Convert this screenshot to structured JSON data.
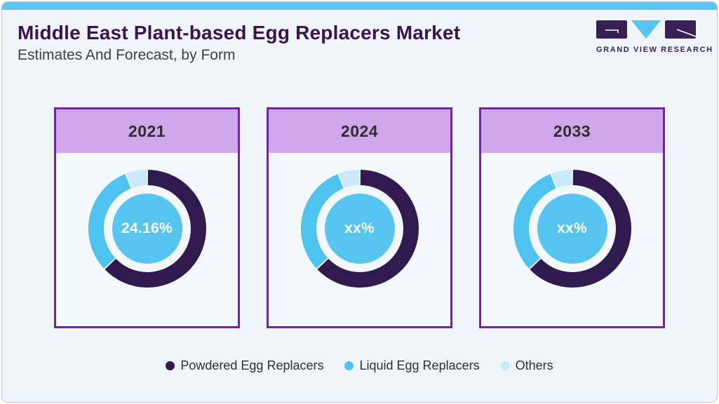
{
  "page": {
    "title": "Middle East Plant-based Egg Replacers Market",
    "subtitle": "Estimates And Forecast, by Form"
  },
  "logo": {
    "text": "GRAND VIEW RESEARCH"
  },
  "colors": {
    "title_text": "#3d1152",
    "subtitle_text": "#3f3f3f",
    "top_strip": "#5ec5f1",
    "panel_bg": "#eff6fb",
    "card_border": "#7322ad",
    "card_header_bg": "#cfa6ea",
    "card_body_bg": "#f3f8fc",
    "year_text": "#2e2e2e",
    "center_circle": "#56c5f0",
    "center_text": "#ffffff",
    "legend_text": "#2f2f2f"
  },
  "chart_data": [
    {
      "type": "pie",
      "title": "2021",
      "center_label": "24.16%",
      "categories": [
        "Powdered Egg Replacers",
        "Liquid Egg Replacers",
        "Others"
      ],
      "values": [
        63,
        31,
        6
      ],
      "legend_position": "bottom"
    },
    {
      "type": "pie",
      "title": "2024",
      "center_label": "xx%",
      "categories": [
        "Powdered Egg Replacers",
        "Liquid Egg Replacers",
        "Others"
      ],
      "values": [
        63,
        31,
        6
      ],
      "legend_position": "bottom"
    },
    {
      "type": "pie",
      "title": "2033",
      "center_label": "xx%",
      "categories": [
        "Powdered Egg Replacers",
        "Liquid Egg Replacers",
        "Others"
      ],
      "values": [
        63,
        31,
        6
      ],
      "legend_position": "bottom"
    }
  ],
  "legend": {
    "items": [
      {
        "label": "Powdered Egg Replacers",
        "color": "#2f1b4d"
      },
      {
        "label": "Liquid Egg Replacers",
        "color": "#4ec3ef"
      },
      {
        "label": "Others",
        "color": "#c9e8f8"
      }
    ]
  }
}
